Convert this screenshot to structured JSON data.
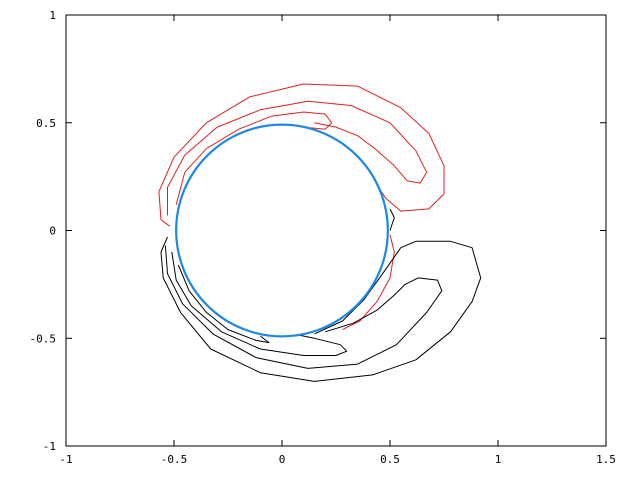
{
  "chart_data": {
    "type": "line",
    "title": "",
    "xlabel": "",
    "ylabel": "",
    "xlim": [
      -1,
      1.5
    ],
    "ylim": [
      -1,
      1
    ],
    "grid": false,
    "legend": "none",
    "x_tick_labels": [
      "-1",
      "-0.5",
      "0",
      "0.5",
      "1",
      "1.5"
    ],
    "y_tick_labels": [
      "-1",
      "-0.5",
      "0",
      "0.5",
      "1"
    ],
    "x_ticks": [
      -1,
      -0.5,
      0,
      0.5,
      1,
      1.5
    ],
    "y_ticks": [
      -1,
      -0.5,
      0,
      0.5,
      1
    ],
    "colors": {
      "frame": "#000000",
      "upper_contours": "#e02020",
      "lower_contours": "#000000",
      "circle": "#1e88e5"
    },
    "circle": {
      "center": [
        0,
        0
      ],
      "radius": 0.49
    },
    "series": [
      {
        "color": "#e02020",
        "points": [
          [
            -0.52,
            0.02
          ],
          [
            -0.56,
            0.05
          ],
          [
            -0.57,
            0.18
          ],
          [
            -0.5,
            0.34
          ],
          [
            -0.35,
            0.5
          ],
          [
            -0.15,
            0.62
          ],
          [
            0.1,
            0.68
          ],
          [
            0.35,
            0.67
          ],
          [
            0.55,
            0.57
          ],
          [
            0.68,
            0.45
          ],
          [
            0.75,
            0.3
          ],
          [
            0.75,
            0.17
          ],
          [
            0.68,
            0.1
          ],
          [
            0.55,
            0.09
          ],
          [
            0.48,
            0.15
          ],
          [
            0.4,
            0.27
          ],
          [
            0.32,
            0.36
          ],
          [
            0.25,
            0.42
          ],
          [
            0.12,
            0.48
          ]
        ]
      },
      {
        "color": "#e02020",
        "points": [
          [
            -0.53,
            0.07
          ],
          [
            -0.53,
            0.2
          ],
          [
            -0.45,
            0.35
          ],
          [
            -0.3,
            0.48
          ],
          [
            -0.1,
            0.56
          ],
          [
            0.12,
            0.6
          ],
          [
            0.32,
            0.58
          ],
          [
            0.5,
            0.5
          ],
          [
            0.62,
            0.37
          ],
          [
            0.67,
            0.27
          ],
          [
            0.64,
            0.22
          ],
          [
            0.58,
            0.23
          ],
          [
            0.52,
            0.3
          ],
          [
            0.43,
            0.38
          ],
          [
            0.35,
            0.44
          ],
          [
            0.25,
            0.48
          ],
          [
            0.15,
            0.5
          ]
        ]
      },
      {
        "color": "#e02020",
        "points": [
          [
            -0.49,
            0.12
          ],
          [
            -0.45,
            0.27
          ],
          [
            -0.35,
            0.38
          ],
          [
            -0.2,
            0.47
          ],
          [
            -0.05,
            0.53
          ],
          [
            0.1,
            0.55
          ],
          [
            0.2,
            0.54
          ],
          [
            0.23,
            0.5
          ],
          [
            0.2,
            0.47
          ],
          [
            0.1,
            0.48
          ]
        ]
      },
      {
        "color": "#e02020",
        "points": [
          [
            0.5,
            -0.02
          ],
          [
            0.52,
            -0.1
          ],
          [
            0.5,
            -0.22
          ],
          [
            0.44,
            -0.33
          ],
          [
            0.36,
            -0.42
          ],
          [
            0.28,
            -0.46
          ]
        ]
      },
      {
        "color": "#000000",
        "points": [
          [
            -0.53,
            -0.03
          ],
          [
            -0.56,
            -0.1
          ],
          [
            -0.55,
            -0.22
          ],
          [
            -0.47,
            -0.38
          ],
          [
            -0.33,
            -0.55
          ],
          [
            -0.1,
            -0.66
          ],
          [
            0.15,
            -0.7
          ],
          [
            0.42,
            -0.67
          ],
          [
            0.62,
            -0.6
          ],
          [
            0.78,
            -0.47
          ],
          [
            0.88,
            -0.33
          ],
          [
            0.92,
            -0.22
          ],
          [
            0.88,
            -0.08
          ],
          [
            0.78,
            -0.05
          ],
          [
            0.62,
            -0.05
          ],
          [
            0.55,
            -0.08
          ],
          [
            0.48,
            -0.18
          ],
          [
            0.38,
            -0.32
          ],
          [
            0.28,
            -0.42
          ],
          [
            0.15,
            -0.48
          ]
        ]
      },
      {
        "color": "#000000",
        "points": [
          [
            -0.54,
            -0.07
          ],
          [
            -0.53,
            -0.2
          ],
          [
            -0.46,
            -0.34
          ],
          [
            -0.32,
            -0.48
          ],
          [
            -0.12,
            -0.59
          ],
          [
            0.12,
            -0.64
          ],
          [
            0.35,
            -0.62
          ],
          [
            0.53,
            -0.53
          ],
          [
            0.67,
            -0.38
          ],
          [
            0.74,
            -0.28
          ],
          [
            0.72,
            -0.23
          ],
          [
            0.63,
            -0.22
          ],
          [
            0.57,
            -0.25
          ],
          [
            0.52,
            -0.3
          ],
          [
            0.44,
            -0.37
          ],
          [
            0.33,
            -0.43
          ],
          [
            0.2,
            -0.47
          ]
        ]
      },
      {
        "color": "#000000",
        "points": [
          [
            -0.51,
            -0.1
          ],
          [
            -0.49,
            -0.23
          ],
          [
            -0.42,
            -0.35
          ],
          [
            -0.28,
            -0.47
          ],
          [
            -0.1,
            -0.55
          ],
          [
            0.1,
            -0.58
          ],
          [
            0.25,
            -0.58
          ],
          [
            0.3,
            -0.56
          ],
          [
            0.27,
            -0.53
          ],
          [
            0.15,
            -0.5
          ],
          [
            0.05,
            -0.48
          ]
        ]
      },
      {
        "color": "#000000",
        "points": [
          [
            -0.48,
            -0.16
          ],
          [
            -0.43,
            -0.28
          ],
          [
            -0.35,
            -0.38
          ],
          [
            -0.25,
            -0.46
          ],
          [
            -0.12,
            -0.51
          ],
          [
            -0.06,
            -0.52
          ],
          [
            -0.1,
            -0.49
          ]
        ]
      },
      {
        "color": "#000000",
        "points": [
          [
            0.5,
            0.1
          ],
          [
            0.52,
            0.06
          ],
          [
            0.5,
            0.0
          ]
        ]
      }
    ]
  }
}
